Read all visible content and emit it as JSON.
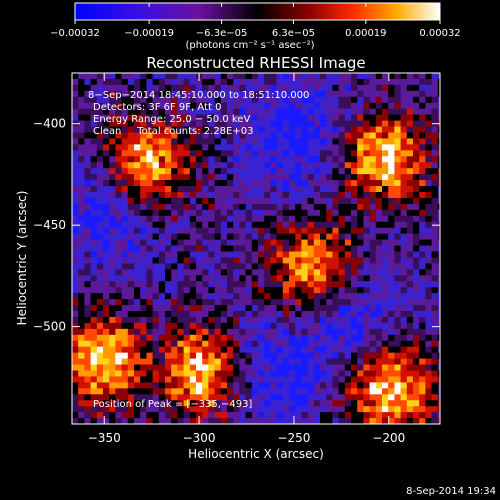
{
  "chart_data": {
    "type": "heatmap",
    "title": "Reconstructed RHESSI Image",
    "xlabel": "Heliocentric X (arcsec)",
    "ylabel": "Heliocentric Y (arcsec)",
    "xlim": [
      -367,
      -173
    ],
    "ylim": [
      -548,
      -375
    ],
    "x_ticks": [
      -350,
      -300,
      -250,
      -200
    ],
    "x_tick_labels": [
      "−350",
      "−300",
      "−250",
      "−200"
    ],
    "y_ticks": [
      -400,
      -450,
      -500
    ],
    "y_tick_labels": [
      "−400",
      "−450",
      "−500"
    ],
    "colorbar": {
      "min": -0.00032,
      "max": 0.00032,
      "ticks": [
        -0.00032,
        -0.00019,
        -6.3e-05,
        6.3e-05,
        0.00019,
        0.00032
      ],
      "tick_labels": [
        "−0.00032",
        "−0.00019",
        "−6.3e−05",
        "6.3e−05",
        "0.00019",
        "0.00032"
      ],
      "unit_label": "(photons cm⁻² s⁻¹ asec⁻²)"
    },
    "annotations": [
      "8−Sep−2014 18:45:10.000 to 18:51:10.000",
      "Detectors: 3F 6F 9F, Att 0",
      "Energy Range: 25.0 − 50.0 keV",
      "Clean     Total counts: 2.28E+03"
    ],
    "peak_label": "Position of Peak = [−335,−493]",
    "bright_regions_xy": [
      [
        -352,
        -515
      ],
      [
        -330,
        -420
      ],
      [
        -300,
        -520
      ],
      [
        -240,
        -470
      ],
      [
        -205,
        -415
      ],
      [
        -200,
        -530
      ]
    ],
    "faint_regions_xy": [
      [
        -350,
        -440
      ],
      [
        -250,
        -405
      ],
      [
        -260,
        -520
      ],
      [
        -225,
        -490
      ]
    ],
    "colors": [
      "#0000ff",
      "#6a00aa",
      "#000000",
      "#cc0000",
      "#ff6600",
      "#ffcc00",
      "#ffffff"
    ]
  },
  "footer": {
    "date": "8-Sep-2014 19:34"
  }
}
